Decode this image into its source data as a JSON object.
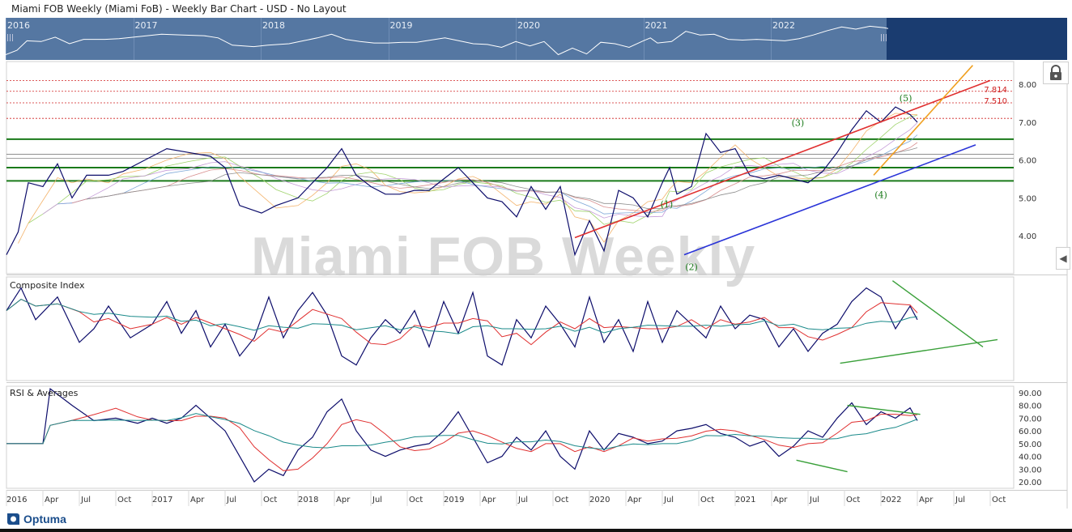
{
  "title": "Miami FOB Weekly (Miami FoB) - Weekly Bar Chart - USD - No Layout",
  "watermark": "Miami FOB Weekly",
  "navigator": {
    "years": [
      "2016",
      "2017",
      "2018",
      "2019",
      "2020",
      "2021",
      "2022"
    ],
    "handle_glyph": "|||"
  },
  "panels": {
    "price": {
      "label": ""
    },
    "composite": {
      "label": "Composite Index"
    },
    "rsi": {
      "label": "RSI & Averages"
    }
  },
  "wave_labels": [
    "(1)",
    "(2)",
    "(3)",
    "(4)",
    "(5)"
  ],
  "level_labels": {
    "upper": "7.814",
    "lower": "7.510"
  },
  "logo": {
    "text": "Optuma"
  },
  "icons": {
    "lock": "lock-icon",
    "collapse": "chevron-left-icon"
  },
  "colors": {
    "price_line": "#0d0d6b",
    "support": "#1a7a1a",
    "trend_red": "#e03030",
    "trend_blue": "#2a34d8",
    "trend_orange": "#f0a020",
    "nav_bg": "#5577a2",
    "nav_dark": "#1a3c70"
  },
  "chart_data": [
    {
      "type": "line",
      "name": "price",
      "yticks": [
        "8.00",
        "7.00",
        "6.00",
        "5.00",
        "4.00"
      ],
      "ylim": [
        3.0,
        8.6
      ],
      "xticks": [
        "2016",
        "Apr",
        "Jul",
        "Oct",
        "2017",
        "Apr",
        "Jul",
        "Oct",
        "2018",
        "Apr",
        "Jul",
        "Oct",
        "2019",
        "Apr",
        "Jul",
        "Oct",
        "2020",
        "Apr",
        "Jul",
        "Oct",
        "2021",
        "Apr",
        "Jul",
        "Oct",
        "2022",
        "Apr",
        "Jul",
        "Oct"
      ],
      "x": [
        0,
        0.08,
        0.15,
        0.25,
        0.35,
        0.45,
        0.55,
        0.7,
        0.8,
        0.95,
        1.1,
        1.25,
        1.4,
        1.5,
        1.6,
        1.75,
        1.85,
        2.0,
        2.1,
        2.2,
        2.3,
        2.4,
        2.5,
        2.6,
        2.7,
        2.8,
        2.9,
        3.0,
        3.1,
        3.2,
        3.3,
        3.4,
        3.5,
        3.6,
        3.7,
        3.8,
        3.9,
        4.0,
        4.1,
        4.2,
        4.3,
        4.4,
        4.5,
        4.55,
        4.6,
        4.7,
        4.8,
        4.9,
        5.0,
        5.1,
        5.2,
        5.3,
        5.4,
        5.5,
        5.6,
        5.7,
        5.8,
        5.9,
        6.0,
        6.1,
        6.2,
        6.25
      ],
      "values": [
        3.5,
        4.1,
        5.4,
        5.3,
        5.9,
        5.0,
        5.6,
        5.6,
        5.7,
        6.0,
        6.3,
        6.2,
        6.1,
        5.8,
        4.8,
        4.6,
        4.8,
        5.0,
        5.4,
        5.8,
        6.3,
        5.6,
        5.3,
        5.1,
        5.1,
        5.2,
        5.2,
        5.5,
        5.8,
        5.4,
        5.0,
        4.9,
        4.5,
        5.3,
        4.7,
        5.3,
        3.5,
        4.4,
        3.6,
        5.2,
        5.0,
        4.5,
        5.4,
        5.8,
        5.1,
        5.3,
        6.7,
        6.2,
        6.3,
        5.6,
        5.5,
        5.6,
        5.5,
        5.4,
        5.7,
        6.2,
        6.8,
        7.3,
        7.0,
        7.4,
        7.2,
        7.0
      ],
      "levels": [
        8.1,
        7.814,
        7.51,
        7.1
      ],
      "supports": [
        6.55,
        5.8,
        5.45
      ],
      "thin_lines": [
        6.15,
        6.05
      ]
    },
    {
      "type": "line",
      "name": "Composite Index",
      "x": [
        0,
        0.1,
        0.2,
        0.35,
        0.5,
        0.6,
        0.7,
        0.85,
        1.0,
        1.1,
        1.2,
        1.3,
        1.4,
        1.5,
        1.6,
        1.7,
        1.8,
        1.9,
        2.0,
        2.1,
        2.2,
        2.3,
        2.4,
        2.5,
        2.6,
        2.7,
        2.8,
        2.9,
        3.0,
        3.1,
        3.2,
        3.3,
        3.4,
        3.5,
        3.6,
        3.7,
        3.8,
        3.9,
        4.0,
        4.1,
        4.2,
        4.3,
        4.4,
        4.5,
        4.6,
        4.7,
        4.8,
        4.9,
        5.0,
        5.1,
        5.2,
        5.3,
        5.4,
        5.5,
        5.6,
        5.7,
        5.8,
        5.9,
        6.0,
        6.1,
        6.2,
        6.25
      ],
      "values": [
        70,
        95,
        60,
        85,
        35,
        50,
        75,
        40,
        55,
        80,
        45,
        70,
        30,
        55,
        20,
        40,
        85,
        40,
        70,
        90,
        65,
        20,
        10,
        40,
        60,
        45,
        70,
        30,
        80,
        45,
        90,
        20,
        10,
        60,
        40,
        75,
        55,
        30,
        85,
        35,
        60,
        25,
        80,
        35,
        70,
        55,
        40,
        75,
        50,
        65,
        60,
        30,
        50,
        25,
        45,
        55,
        80,
        95,
        85,
        50,
        75,
        60
      ],
      "ylim": [
        0,
        100
      ]
    },
    {
      "type": "line",
      "name": "RSI & Averages",
      "yticks": [
        "90.00",
        "80.00",
        "70.00",
        "60.00",
        "50.00",
        "40.00",
        "30.00",
        "20.00"
      ],
      "ylim": [
        15,
        95
      ],
      "x": [
        0,
        0.25,
        0.3,
        0.45,
        0.6,
        0.75,
        0.9,
        1.0,
        1.1,
        1.2,
        1.3,
        1.4,
        1.5,
        1.6,
        1.7,
        1.8,
        1.9,
        2.0,
        2.1,
        2.2,
        2.3,
        2.4,
        2.5,
        2.6,
        2.7,
        2.8,
        2.9,
        3.0,
        3.1,
        3.2,
        3.3,
        3.4,
        3.5,
        3.6,
        3.7,
        3.8,
        3.9,
        4.0,
        4.1,
        4.2,
        4.3,
        4.4,
        4.5,
        4.6,
        4.7,
        4.8,
        4.9,
        5.0,
        5.1,
        5.2,
        5.3,
        5.4,
        5.5,
        5.6,
        5.7,
        5.8,
        5.9,
        6.0,
        6.1,
        6.2,
        6.25
      ],
      "values": [
        50,
        50,
        93,
        80,
        68,
        70,
        66,
        70,
        66,
        70,
        80,
        70,
        60,
        40,
        20,
        30,
        25,
        45,
        55,
        75,
        85,
        60,
        45,
        40,
        45,
        48,
        50,
        60,
        75,
        55,
        35,
        40,
        55,
        45,
        60,
        40,
        30,
        60,
        45,
        58,
        55,
        50,
        52,
        60,
        62,
        65,
        58,
        55,
        48,
        52,
        40,
        48,
        60,
        55,
        70,
        82,
        65,
        75,
        70,
        78,
        68
      ],
      "trend_lines": [
        [
          5.77,
          80,
          6.27,
          73
        ],
        [
          5.42,
          37,
          5.77,
          28
        ]
      ]
    }
  ]
}
